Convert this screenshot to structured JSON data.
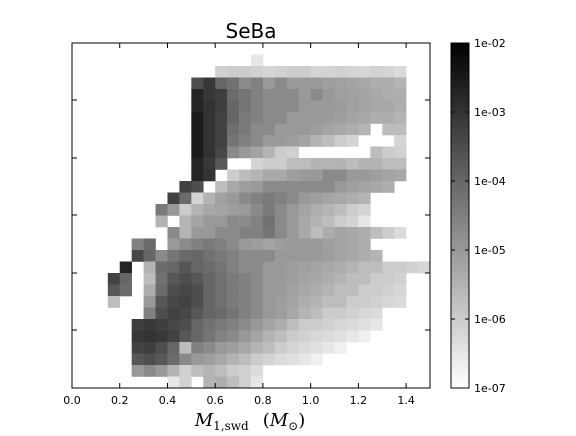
{
  "chart_data": {
    "type": "heatmap",
    "title": "SeBa",
    "xlabel": "M_{1,swd} (M_⊙)",
    "xlabel_parts": {
      "main": "M",
      "sub": "1,swd",
      "unit_open": "(",
      "unit_main": "M",
      "unit_sub": "⊙",
      "unit_close": ")"
    },
    "ylabel": "",
    "x_ticks": [
      "0.0",
      "0.2",
      "0.4",
      "0.6",
      "0.8",
      "1.0",
      "1.2",
      "1.4"
    ],
    "y_tick_labels_visible": false,
    "xlim": [
      0.0,
      1.5
    ],
    "grid": false,
    "colormap": "gray_r",
    "color_scale": "log",
    "colorbar": {
      "ticks": [
        "1e-02",
        "1e-03",
        "1e-04",
        "1e-05",
        "1e-06",
        "1e-07"
      ],
      "range": [
        1e-07,
        0.01
      ]
    },
    "bin_width_x": 0.05,
    "rows": 30,
    "row_data": [
      {
        "x_start": 0.0,
        "values": []
      },
      {
        "x_start": 0.75,
        "values": [
          "3e-7"
        ]
      },
      {
        "x_start": 0.6,
        "values": [
          "8e-7",
          "1e-6",
          "1e-6",
          "8e-7",
          "7e-7",
          "8e-7",
          "1e-6",
          "1e-6",
          "7e-7",
          "7e-7",
          "8e-7",
          "7e-7",
          "6e-7",
          "8e-7",
          "7e-7",
          "5e-7"
        ]
      },
      {
        "x_start": 0.5,
        "values": [
          "3e-4",
          "8e-4",
          "1e-4",
          "6e-5",
          "2e-5",
          "3e-5",
          "1e-5",
          "2e-5",
          "1e-5",
          "1e-5",
          "1e-5",
          "8e-6",
          "7e-6",
          "6e-6",
          "5e-6",
          "4e-6",
          "4e-6",
          "3e-6"
        ]
      },
      {
        "x_start": 0.5,
        "values": [
          "2e-3",
          "8e-4",
          "6e-4",
          "8e-5",
          "5e-5",
          "3e-5",
          "2e-5",
          "2e-5",
          "2e-5",
          "1e-5",
          "2e-5",
          "1e-5",
          "8e-6",
          "7e-6",
          "6e-6",
          "5e-6",
          "4e-6",
          "4e-6"
        ]
      },
      {
        "x_start": 0.5,
        "values": [
          "2e-3",
          "1e-3",
          "6e-4",
          "1e-4",
          "5e-5",
          "3e-5",
          "2e-5",
          "2e-5",
          "2e-5",
          "1e-5",
          "1e-5",
          "1e-5",
          "9e-6",
          "7e-6",
          "6e-6",
          "5e-6",
          "5e-6",
          "4e-6"
        ]
      },
      {
        "x_start": 0.5,
        "values": [
          "3e-3",
          "1e-3",
          "5e-4",
          "1e-4",
          "4e-5",
          "3e-5",
          "2e-5",
          "2e-5",
          "1e-5",
          "1e-5",
          "1e-5",
          "9e-6",
          "8e-6",
          "6e-6",
          "5e-6",
          "4e-6",
          "4e-6",
          "3e-6"
        ]
      },
      {
        "x_start": 0.5,
        "values": [
          "3e-3",
          "1e-3",
          "5e-4",
          "7e-5",
          "4e-5",
          "2e-5",
          "2e-5",
          "1e-5",
          "1e-5",
          "1e-5",
          "8e-6",
          "6e-6",
          "5e-6",
          "4e-6",
          "3e-6",
          null,
          "2e-6",
          "2e-6"
        ]
      },
      {
        "x_start": 0.5,
        "values": [
          "3e-3",
          "1e-3",
          "5e-4",
          "5e-5",
          "3e-5",
          "2e-5",
          "1e-5",
          "1e-5",
          "8e-6",
          "6e-6",
          "3e-6",
          "2e-6",
          "1e-6",
          "7e-7",
          null,
          null,
          null,
          "7e-7"
        ]
      },
      {
        "x_start": 0.5,
        "values": [
          "3e-3",
          "1e-3",
          "4e-4",
          "2e-5",
          "1e-5",
          "6e-6",
          "3e-6",
          "1e-6",
          "8e-7",
          null,
          null,
          null,
          null,
          null,
          null,
          "2e-6",
          "1e-6",
          "8e-7"
        ]
      },
      {
        "x_start": 0.5,
        "values": [
          "2e-3",
          "8e-4",
          "2e-4",
          null,
          null,
          "7e-7",
          "1e-6",
          "1e-6",
          "2e-6",
          "2e-6",
          "3e-6",
          "3e-6",
          "3e-6",
          "2e-6",
          "3e-6",
          "3e-6",
          "2e-6",
          "2e-6"
        ]
      },
      {
        "x_start": 0.5,
        "values": [
          "2e-3",
          "1e-3",
          null,
          "1e-6",
          "2e-6",
          "3e-6",
          "5e-6",
          "5e-6",
          "8e-6",
          "1e-5",
          "1e-5",
          "2e-5",
          "2e-5",
          "1e-5",
          "1e-5",
          "8e-6",
          "6e-6",
          "5e-6"
        ]
      },
      {
        "x_start": 0.45,
        "values": [
          "5e-4",
          "3e-4",
          null,
          "2e-6",
          "5e-6",
          "8e-6",
          "1e-5",
          "2e-5",
          "2e-5",
          "2e-5",
          "2e-5",
          "2e-5",
          "2e-5",
          "1e-5",
          "8e-6",
          "6e-6",
          "5e-6",
          "4e-6"
        ]
      },
      {
        "x_start": 0.4,
        "values": [
          "5e-4",
          "8e-5",
          "7e-7",
          "3e-6",
          "7e-6",
          "1e-5",
          "2e-5",
          "3e-5",
          "4e-5",
          "3e-5",
          "2e-5",
          "1e-5",
          "8e-6",
          "6e-6",
          "5e-6",
          "4e-6",
          "3e-6"
        ]
      },
      {
        "x_start": 0.35,
        "values": [
          "4e-5",
          "1e-5",
          "1e-6",
          "3e-6",
          "5e-6",
          "6e-6",
          "8e-6",
          "1e-5",
          "2e-5",
          "4e-5",
          "2e-5",
          "1e-5",
          "6e-6",
          "4e-6",
          "3e-6",
          "2e-6",
          "1e-6",
          "7e-7"
        ]
      },
      {
        "x_start": 0.35,
        "values": [
          "3e-6",
          null,
          "3e-6",
          "6e-6",
          "1e-5",
          "1e-5",
          "2e-5",
          "2e-5",
          "3e-5",
          "6e-5",
          "2e-5",
          "1e-5",
          "5e-6",
          "3e-6",
          "2e-6",
          "1e-6",
          "7e-7",
          "3e-7"
        ]
      },
      {
        "x_start": 0.4,
        "values": [
          "2e-5",
          "3e-6",
          "1e-5",
          "1e-5",
          "2e-5",
          "2e-5",
          "3e-5",
          "3e-5",
          "5e-5",
          "2e-5",
          "1e-5",
          "5e-6",
          "2e-6",
          "4e-6",
          "6e-6",
          "5e-6",
          "4e-6",
          "2e-6",
          "1e-6",
          "5e-7"
        ]
      },
      {
        "x_start": 0.25,
        "values": [
          "3e-5",
          "8e-5",
          null,
          "1e-5",
          "2e-5",
          "3e-5",
          "4e-5",
          "3e-5",
          "2e-5",
          "1e-5",
          "8e-6",
          "6e-6",
          "8e-6",
          "1e-5",
          "1e-5",
          "1e-5",
          "8e-6",
          "6e-6",
          "5e-6",
          "4e-6"
        ]
      },
      {
        "x_start": 0.25,
        "values": [
          "4e-4",
          "1e-4",
          "2e-5",
          "5e-5",
          "8e-5",
          "1e-4",
          "6e-5",
          "4e-5",
          "3e-5",
          "2e-5",
          "2e-5",
          "2e-5",
          "1e-5",
          "1e-5",
          "1e-5",
          "9e-6",
          "8e-6",
          "6e-6",
          "5e-6",
          "4e-6",
          "3e-6"
        ]
      },
      {
        "x_start": 0.2,
        "values": [
          "2e-3",
          null,
          "3e-6",
          "8e-5",
          "1e-4",
          "2e-4",
          "1e-4",
          "8e-5",
          "5e-5",
          "3e-5",
          "2e-5",
          "2e-5",
          "1e-5",
          "1e-5",
          "8e-6",
          "7e-6",
          "6e-6",
          "5e-6",
          "4e-6",
          "3e-6",
          "2e-6",
          "2e-6",
          "1e-6",
          "1e-6",
          "8e-7",
          "6e-7"
        ]
      },
      {
        "x_start": 0.15,
        "values": [
          "5e-4",
          "1e-4",
          null,
          "2e-6",
          "6e-5",
          "2e-4",
          "3e-4",
          "2e-4",
          "1e-4",
          "6e-5",
          "4e-5",
          "3e-5",
          "2e-5",
          "1e-5",
          "1e-5",
          "8e-6",
          "6e-6",
          "5e-6",
          "4e-6",
          "3e-6",
          "2e-6",
          "2e-6",
          "1e-6",
          "1e-6",
          "8e-7"
        ]
      },
      {
        "x_start": 0.15,
        "values": [
          "2e-4",
          "8e-5",
          null,
          "4e-6",
          "8e-5",
          "3e-4",
          "4e-4",
          "3e-4",
          "1e-4",
          "6e-5",
          "4e-5",
          "3e-5",
          "2e-5",
          "1e-5",
          "9e-6",
          "7e-6",
          "5e-6",
          "4e-6",
          "3e-6",
          "2e-6",
          "2e-6",
          "1e-6",
          "1e-6",
          "8e-7",
          "6e-7"
        ]
      },
      {
        "x_start": 0.15,
        "values": [
          "2e-6",
          null,
          null,
          "1e-5",
          "2e-4",
          "4e-4",
          "5e-4",
          "3e-4",
          "1e-4",
          "6e-5",
          "4e-5",
          "3e-5",
          "2e-5",
          "1e-5",
          "8e-6",
          "6e-6",
          "4e-6",
          "3e-6",
          "2e-6",
          "2e-6",
          "1e-6",
          "1e-6",
          "8e-7",
          "6e-7",
          "5e-7"
        ]
      },
      {
        "x_start": 0.3,
        "values": [
          "3e-5",
          "3e-4",
          "5e-4",
          "4e-4",
          "2e-4",
          "1e-4",
          "8e-5",
          "5e-5",
          "3e-5",
          "2e-5",
          "1e-5",
          "8e-6",
          "5e-6",
          "3e-6",
          "2e-6",
          "1e-6",
          "1e-6",
          "8e-7",
          "6e-7",
          "5e-7"
        ]
      },
      {
        "x_start": 0.25,
        "values": [
          "6e-4",
          "8e-4",
          "6e-4",
          "4e-4",
          "3e-4",
          "1e-4",
          "6e-5",
          "4e-5",
          "3e-5",
          "2e-5",
          "1e-5",
          "6e-6",
          "4e-6",
          "2e-6",
          "1e-6",
          "1e-6",
          "8e-7",
          "6e-7",
          "5e-7",
          "4e-7",
          "3e-7"
        ]
      },
      {
        "x_start": 0.25,
        "values": [
          "8e-4",
          "1e-3",
          "8e-4",
          "5e-4",
          "2e-4",
          "1e-4",
          "5e-5",
          "3e-5",
          "2e-5",
          "1e-5",
          "6e-6",
          "3e-6",
          "2e-6",
          "1e-6",
          "8e-7",
          "6e-7",
          "5e-7",
          "4e-7",
          "3e-7",
          "2e-7"
        ]
      },
      {
        "x_start": 0.25,
        "values": [
          "5e-4",
          "6e-4",
          "3e-4",
          "1e-4",
          "2e-6",
          "3e-5",
          "2e-5",
          "1e-5",
          "8e-6",
          "5e-6",
          "3e-6",
          "2e-6",
          "1e-6",
          "7e-7",
          "5e-7",
          "4e-7",
          "3e-7",
          "2e-7"
        ]
      },
      {
        "x_start": 0.25,
        "values": [
          "2e-4",
          "3e-4",
          "2e-4",
          "8e-5",
          "2e-5",
          "1e-5",
          "8e-6",
          "5e-6",
          "3e-6",
          "2e-6",
          "1e-6",
          "7e-7",
          "5e-7",
          "4e-7",
          "3e-7",
          "2e-7"
        ]
      },
      {
        "x_start": 0.25,
        "values": [
          "1e-5",
          "2e-5",
          "1e-5",
          "3e-6",
          "8e-7",
          "2e-6",
          "3e-6",
          "2e-6",
          "1e-6",
          "8e-7",
          "5e-7"
        ]
      },
      {
        "x_start": 0.4,
        "values": [
          "3e-7",
          "8e-7",
          null,
          "3e-6",
          "4e-6",
          "2e-6",
          "8e-7",
          "3e-7"
        ]
      }
    ]
  }
}
